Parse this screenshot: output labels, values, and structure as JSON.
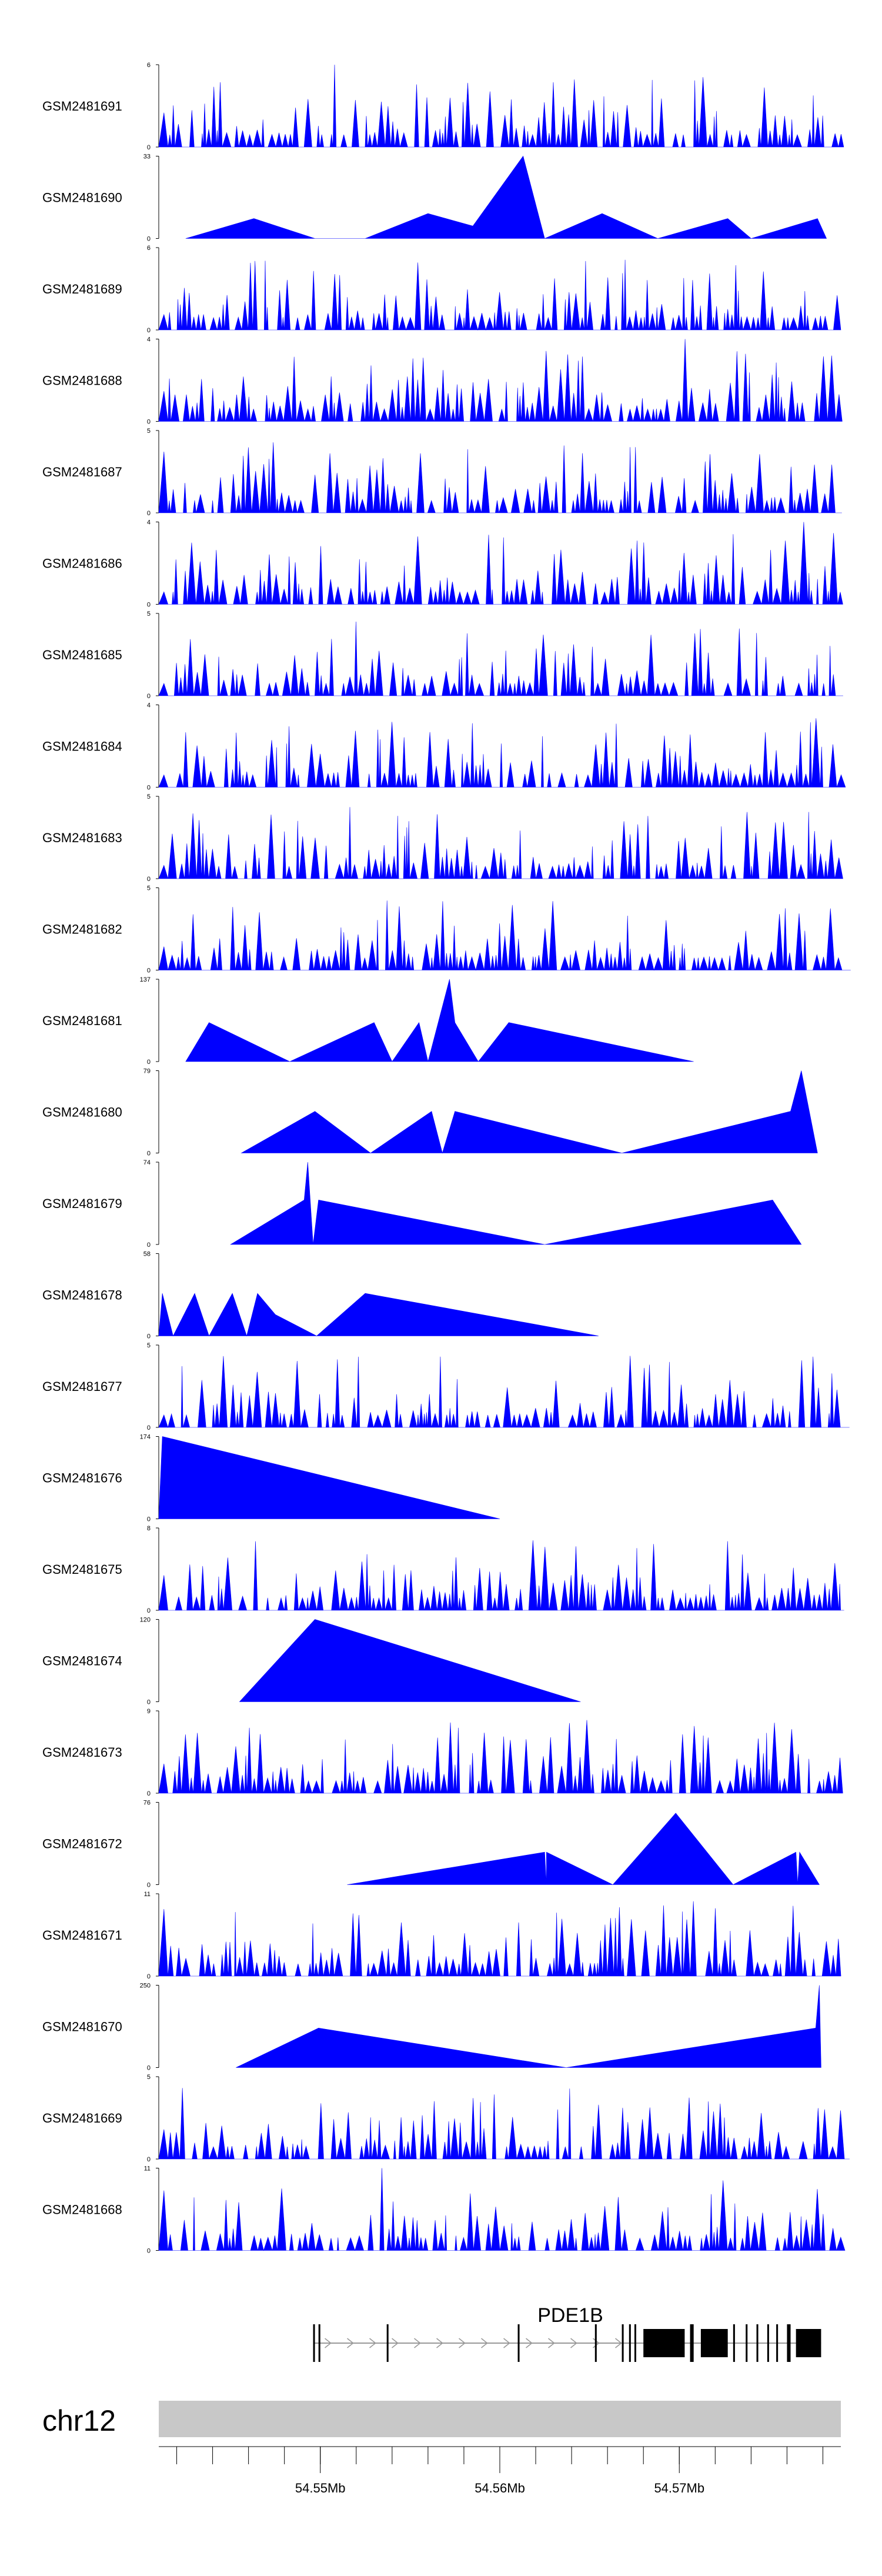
{
  "chart_data": {
    "type": "area",
    "title": "",
    "chromosome": "chr12",
    "gene": "PDE1B",
    "colors": {
      "signal": "#0000ff",
      "axis": "#000000",
      "ideogram": "#c8c8c8",
      "gene": "#000000",
      "intron_arrow": "#999999"
    },
    "x_range_mb": [
      54.541,
      54.579
    ],
    "x_ticks": [
      {
        "value": 54.55,
        "label": "54.55Mb"
      },
      {
        "value": 54.56,
        "label": "54.56Mb"
      },
      {
        "value": 54.57,
        "label": "54.57Mb"
      }
    ],
    "gene_model": {
      "strand": "+",
      "exons": [
        [
          54.5496,
          54.5497
        ],
        [
          54.5499,
          54.55
        ],
        [
          54.5537,
          54.5538
        ],
        [
          54.561,
          54.5611
        ],
        [
          54.5653,
          54.5654
        ],
        [
          54.5668,
          54.5669
        ],
        [
          54.5672,
          54.5673
        ],
        [
          54.5675,
          54.5676
        ],
        [
          54.568,
          54.5703
        ],
        [
          54.5706,
          54.5708
        ],
        [
          54.5712,
          54.5727
        ],
        [
          54.573,
          54.5731
        ],
        [
          54.5737,
          54.5738
        ],
        [
          54.5743,
          54.5744
        ],
        [
          54.5749,
          54.575
        ],
        [
          54.5754,
          54.5755
        ],
        [
          54.576,
          54.5762
        ],
        [
          54.5765,
          54.5779
        ]
      ]
    },
    "series": [
      {
        "name": "GSM2481691",
        "ymax": 6,
        "pattern": "dense",
        "seed": 1691,
        "peaks": [
          [
            54.5508,
            6
          ]
        ]
      },
      {
        "name": "GSM2481690",
        "ymax": 33,
        "pattern": "sparse",
        "seed": 1690,
        "breakpoints": [
          [
            54.5425,
            0
          ],
          [
            54.5463,
            8
          ],
          [
            54.5497,
            0
          ],
          [
            54.5525,
            0
          ],
          [
            54.556,
            10
          ],
          [
            54.5585,
            5
          ],
          [
            54.561,
            30
          ],
          [
            54.5613,
            33
          ],
          [
            54.5625,
            0
          ],
          [
            54.5657,
            10
          ],
          [
            54.5688,
            0
          ],
          [
            54.5727,
            8
          ],
          [
            54.574,
            0
          ],
          [
            54.5777,
            8
          ],
          [
            54.5782,
            0
          ]
        ]
      },
      {
        "name": "GSM2481689",
        "ymax": 6,
        "pattern": "dense",
        "seed": 1689,
        "peaks": []
      },
      {
        "name": "GSM2481688",
        "ymax": 4,
        "pattern": "dense",
        "seed": 1688,
        "peaks": [
          [
            54.5702,
            4
          ]
        ]
      },
      {
        "name": "GSM2481687",
        "ymax": 5,
        "pattern": "dense",
        "seed": 1687,
        "peaks": []
      },
      {
        "name": "GSM2481686",
        "ymax": 4,
        "pattern": "dense",
        "seed": 1686,
        "peaks": [
          [
            54.577,
            4
          ]
        ]
      },
      {
        "name": "GSM2481685",
        "ymax": 5,
        "pattern": "dense",
        "seed": 1685,
        "peaks": [
          [
            54.552,
            4.5
          ]
        ]
      },
      {
        "name": "GSM2481684",
        "ymax": 4,
        "pattern": "dense",
        "seed": 1684,
        "peaks": [
          [
            54.561,
            4
          ]
        ]
      },
      {
        "name": "GSM2481683",
        "ymax": 5,
        "pattern": "dense",
        "seed": 1683,
        "peaks": []
      },
      {
        "name": "GSM2481682",
        "ymax": 5,
        "pattern": "dense",
        "seed": 1682,
        "peaks": []
      },
      {
        "name": "GSM2481681",
        "ymax": 137,
        "pattern": "sparse",
        "seed": 1681,
        "breakpoints": [
          [
            54.5425,
            0
          ],
          [
            54.5438,
            65
          ],
          [
            54.5483,
            0
          ],
          [
            54.553,
            65
          ],
          [
            54.554,
            0
          ],
          [
            54.5555,
            65
          ],
          [
            54.556,
            0
          ],
          [
            54.5572,
            137
          ],
          [
            54.5575,
            65
          ],
          [
            54.5588,
            0
          ],
          [
            54.5605,
            65
          ],
          [
            54.5708,
            0
          ]
        ]
      },
      {
        "name": "GSM2481680",
        "ymax": 79,
        "pattern": "sparse",
        "seed": 1680,
        "breakpoints": [
          [
            54.5456,
            0
          ],
          [
            54.5497,
            40
          ],
          [
            54.5528,
            0
          ],
          [
            54.5562,
            40
          ],
          [
            54.5568,
            0
          ],
          [
            54.5575,
            40
          ],
          [
            54.5668,
            0
          ],
          [
            54.5762,
            40
          ],
          [
            54.5768,
            79
          ],
          [
            54.5777,
            0
          ]
        ]
      },
      {
        "name": "GSM2481679",
        "ymax": 74,
        "pattern": "sparse",
        "seed": 1679,
        "breakpoints": [
          [
            54.545,
            0
          ],
          [
            54.5491,
            40
          ],
          [
            54.5493,
            74
          ],
          [
            54.5496,
            0
          ],
          [
            54.5499,
            40
          ],
          [
            54.5625,
            0
          ],
          [
            54.5752,
            40
          ],
          [
            54.5768,
            0
          ]
        ]
      },
      {
        "name": "GSM2481678",
        "ymax": 58,
        "pattern": "sparse",
        "seed": 1678,
        "breakpoints": [
          [
            54.541,
            0
          ],
          [
            54.5412,
            30
          ],
          [
            54.5418,
            0
          ],
          [
            54.543,
            30
          ],
          [
            54.5438,
            0
          ],
          [
            54.5451,
            30
          ],
          [
            54.5459,
            0
          ],
          [
            54.5465,
            30
          ],
          [
            54.5475,
            15
          ],
          [
            54.5498,
            0
          ],
          [
            54.5525,
            30
          ],
          [
            54.5655,
            0
          ]
        ]
      },
      {
        "name": "GSM2481677",
        "ymax": 5,
        "pattern": "dense",
        "seed": 1677,
        "peaks": [
          [
            54.5534,
            5
          ]
        ]
      },
      {
        "name": "GSM2481676",
        "ymax": 174,
        "pattern": "sparse",
        "seed": 1676,
        "breakpoints": [
          [
            54.541,
            0
          ],
          [
            54.5412,
            174
          ],
          [
            54.56,
            0
          ]
        ]
      },
      {
        "name": "GSM2481675",
        "ymax": 8,
        "pattern": "dense",
        "seed": 1675,
        "peaks": []
      },
      {
        "name": "GSM2481674",
        "ymax": 120,
        "pattern": "sparse",
        "seed": 1674,
        "breakpoints": [
          [
            54.5455,
            0
          ],
          [
            54.5497,
            120
          ],
          [
            54.5645,
            0
          ]
        ]
      },
      {
        "name": "GSM2481673",
        "ymax": 9,
        "pattern": "dense",
        "seed": 1673,
        "peaks": [
          [
            54.5495,
            8
          ],
          [
            54.5647,
            8
          ],
          [
            54.5762,
            7
          ]
        ]
      },
      {
        "name": "GSM2481672",
        "ymax": 76,
        "pattern": "sparse",
        "seed": 1672,
        "breakpoints": [
          [
            54.5515,
            0
          ],
          [
            54.5625,
            30
          ],
          [
            54.5626,
            0
          ],
          [
            54.5626,
            30
          ],
          [
            54.5663,
            0
          ],
          [
            54.5698,
            66
          ],
          [
            54.573,
            0
          ],
          [
            54.5765,
            30
          ],
          [
            54.5766,
            0
          ],
          [
            54.5767,
            30
          ],
          [
            54.5778,
            0
          ]
        ]
      },
      {
        "name": "GSM2481671",
        "ymax": 11,
        "pattern": "dense",
        "seed": 1671,
        "peaks": [
          [
            54.5624,
            10
          ],
          [
            54.5709,
            10
          ]
        ]
      },
      {
        "name": "GSM2481670",
        "ymax": 250,
        "pattern": "sparse",
        "seed": 1670,
        "breakpoints": [
          [
            54.5453,
            0
          ],
          [
            54.5499,
            120
          ],
          [
            54.5637,
            0
          ],
          [
            54.5776,
            120
          ],
          [
            54.5778,
            250
          ],
          [
            54.5779,
            0
          ]
        ]
      },
      {
        "name": "GSM2481669",
        "ymax": 5,
        "pattern": "dense",
        "seed": 1669,
        "peaks": []
      },
      {
        "name": "GSM2481668",
        "ymax": 11,
        "pattern": "dense",
        "seed": 1668,
        "peaks": [
          [
            54.5533,
            11
          ]
        ]
      }
    ]
  }
}
